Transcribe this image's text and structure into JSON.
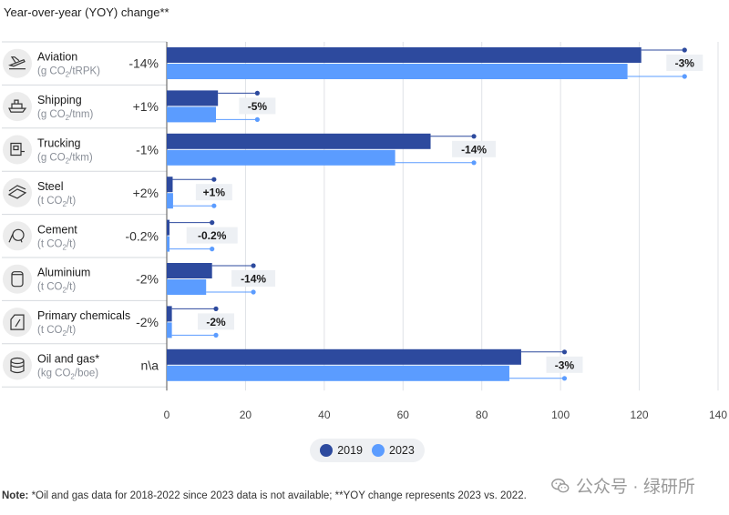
{
  "header": {
    "title": "Year-over-year (YOY) change**"
  },
  "colors": {
    "c2019": "#2d4a9e",
    "c2023": "#5b9cff",
    "label_bg": "#edf0f4",
    "row_line": "#d6d9de",
    "icon_bg": "#ececec"
  },
  "note": {
    "bold": "Note:",
    "text": " *Oil and gas data for 2018-2022 since 2023 data is not available; **YOY change represents 2023 vs. 2022."
  },
  "watermark": {
    "text": "公众号 · 绿研所"
  },
  "chart_data": {
    "type": "bar",
    "orientation": "horizontal",
    "title": "Year-over-year (YOY) change**",
    "xlim": [
      0,
      140
    ],
    "xticks": [
      "0",
      "20",
      "40",
      "60",
      "80",
      "100",
      "120",
      "140"
    ],
    "grid": true,
    "legend": {
      "position": "bottom",
      "entries": [
        "2019",
        "2023"
      ]
    },
    "categories": [
      {
        "name": "Aviation",
        "unit_prefix": "(g CO",
        "unit_sub": "2",
        "unit_suffix": "/tRPK)",
        "yoy": "-14%",
        "v2019": 120.5,
        "v2023": 117,
        "dot2022": 131.5,
        "dot2023": 131.5,
        "dot_label": "-3%",
        "icon": "airplane-icon"
      },
      {
        "name": "Shipping",
        "unit_prefix": "(g CO",
        "unit_sub": "2",
        "unit_suffix": "/tnm)",
        "yoy": "+1%",
        "v2019": 13,
        "v2023": 12.5,
        "dot2022": 23,
        "dot2023": 23,
        "dot_label": "-5%",
        "icon": "ship-icon"
      },
      {
        "name": "Trucking",
        "unit_prefix": "(g CO",
        "unit_sub": "2",
        "unit_suffix": "/tkm)",
        "yoy": "-1%",
        "v2019": 67,
        "v2023": 58,
        "dot2022": 78,
        "dot2023": 78,
        "dot_label": "-14%",
        "icon": "truck-icon"
      },
      {
        "name": "Steel",
        "unit_prefix": "(t CO",
        "unit_sub": "2",
        "unit_suffix": "/t)",
        "yoy": "+2%",
        "v2019": 1.5,
        "v2023": 1.6,
        "dot2022": 12,
        "dot2023": 12,
        "dot_label": "+1%",
        "icon": "steel-icon"
      },
      {
        "name": "Cement",
        "unit_prefix": "(t CO",
        "unit_sub": "2",
        "unit_suffix": "/t)",
        "yoy": "-0.2%",
        "v2019": 0.7,
        "v2023": 0.7,
        "dot2022": 11.5,
        "dot2023": 11.5,
        "dot_label": "-0.2%",
        "icon": "cement-icon"
      },
      {
        "name": "Aluminium",
        "unit_prefix": "(t CO",
        "unit_sub": "2",
        "unit_suffix": "/t)",
        "yoy": "-2%",
        "v2019": 11.5,
        "v2023": 10,
        "dot2022": 22,
        "dot2023": 22,
        "dot_label": "-14%",
        "icon": "aluminium-icon"
      },
      {
        "name": "Primary chemicals",
        "unit_prefix": "(t CO",
        "unit_sub": "2",
        "unit_suffix": "/t)",
        "yoy": "-2%",
        "v2019": 1.3,
        "v2023": 1.3,
        "dot2022": 12.5,
        "dot2023": 12.5,
        "dot_label": "-2%",
        "icon": "chemicals-icon"
      },
      {
        "name": "Oil and gas*",
        "unit_prefix": "(kg CO",
        "unit_sub": "2",
        "unit_suffix": "/boe)",
        "yoy": "n\\a",
        "v2019": 90,
        "v2023": 87,
        "dot2022": 101,
        "dot2023": 101,
        "dot_label": "-3%",
        "icon": "oil-gas-icon"
      }
    ],
    "series": [
      {
        "name": "2019",
        "key": "v2019"
      },
      {
        "name": "2023",
        "key": "v2023"
      }
    ]
  }
}
